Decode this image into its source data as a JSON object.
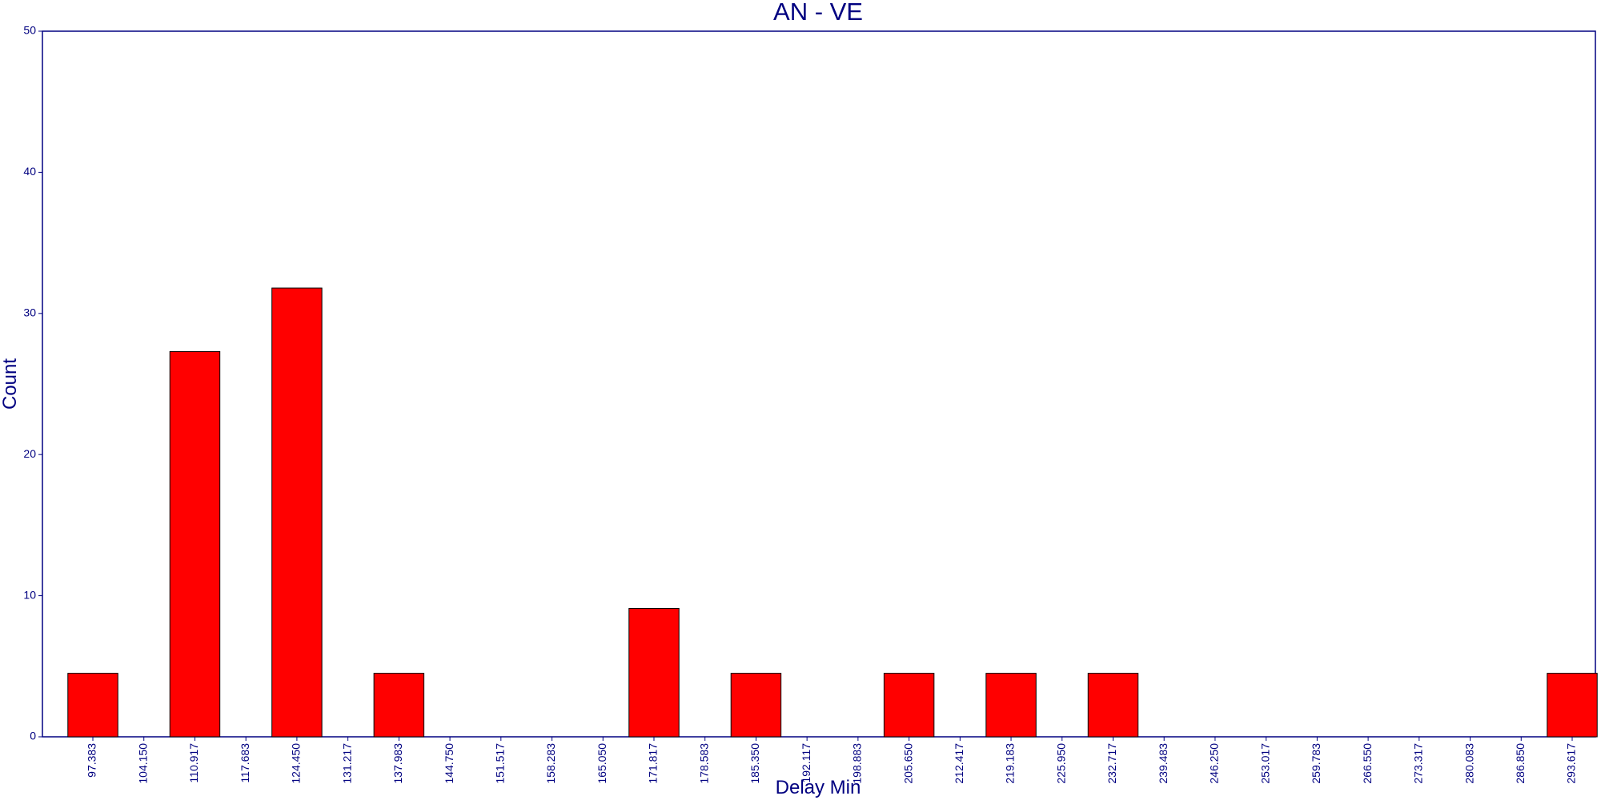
{
  "chart_data": {
    "type": "bar",
    "title": "AN - VE",
    "xlabel": "Delay Min",
    "ylabel": "Count",
    "ylim": [
      0,
      50
    ],
    "yticks": [
      "0",
      "10",
      "20",
      "30",
      "40",
      "50"
    ],
    "grid": false,
    "categories": [
      "97.383",
      "104.150",
      "110.917",
      "117.683",
      "124.450",
      "131.217",
      "137.983",
      "144.750",
      "151.517",
      "158.283",
      "165.050",
      "171.817",
      "178.583",
      "185.350",
      "192.117",
      "198.883",
      "205.650",
      "212.417",
      "219.183",
      "225.950",
      "232.717",
      "239.483",
      "246.250",
      "253.017",
      "259.783",
      "266.550",
      "273.317",
      "280.083",
      "286.850",
      "293.617"
    ],
    "values": [
      4.5,
      0,
      27.3,
      0,
      31.8,
      0,
      4.5,
      0,
      0,
      0,
      0,
      9.1,
      0,
      4.5,
      0,
      0,
      4.5,
      0,
      4.5,
      0,
      4.5,
      0,
      0,
      0,
      0,
      0,
      0,
      0,
      0,
      4.5
    ],
    "colors": {
      "bar": "#ff0000",
      "bar_edge": "#000000",
      "axis": "#000080",
      "text": "#000080"
    }
  }
}
